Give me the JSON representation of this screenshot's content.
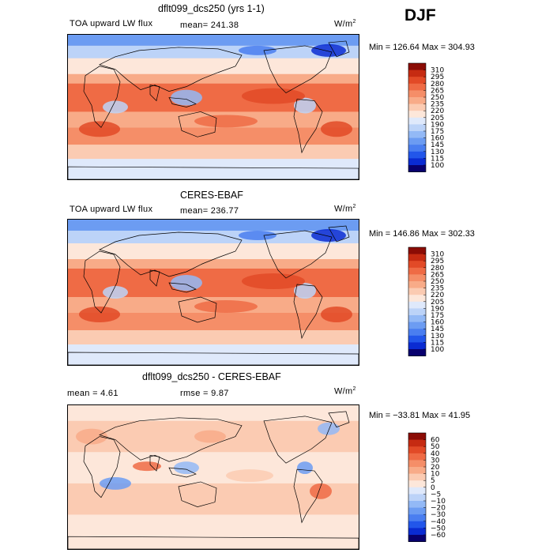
{
  "season": "DJF",
  "colors": {
    "abs_scale": [
      "#08006e",
      "#0a2bd2",
      "#2256ea",
      "#4a7ef0",
      "#6c9cf2",
      "#93b9f6",
      "#bcd3f8",
      "#dfe9fb",
      "#fde7da",
      "#fbcbb2",
      "#f8ab88",
      "#f58e68",
      "#ef6b45",
      "#e24a27",
      "#c62b12",
      "#8b0c05"
    ],
    "diff_scale": [
      "#08006e",
      "#0a2bd2",
      "#2256ea",
      "#4a7ef0",
      "#6c9cf2",
      "#93b9f6",
      "#bcd3f8",
      "#dfe9fb",
      "#fde7da",
      "#fbcbb2",
      "#f8ab88",
      "#f58e68",
      "#ef6b45",
      "#e24a27",
      "#c62b12",
      "#8b0c05"
    ]
  },
  "panels": [
    {
      "title": "dflt099_dcs250 (yrs 1-1)",
      "left_label": "TOA upward LW flux",
      "stat_label": "mean= 241.38",
      "units": "W/m",
      "units_sup": "2",
      "minmax": "Min = 126.64 Max = 304.93"
    },
    {
      "title": "CERES-EBAF",
      "left_label": "TOA upward LW flux",
      "stat_label": "mean= 236.77",
      "units": "W/m",
      "units_sup": "2",
      "minmax": "Min = 146.86 Max = 302.33"
    },
    {
      "title": "dflt099_dcs250 - CERES-EBAF",
      "left_label": "mean =   4.61",
      "stat_label": "rmse =   9.87",
      "units": "W/m",
      "units_sup": "2",
      "minmax": "Min = −33.81 Max =  41.95"
    }
  ],
  "chart_data": [
    {
      "type": "heatmap",
      "title": "dflt099_dcs250 (yrs 1-1)",
      "variable": "TOA upward LW flux",
      "units": "W/m2",
      "mean": 241.38,
      "min": 126.64,
      "max": 304.93,
      "colorbar_ticks": [
        "310",
        "295",
        "280",
        "265",
        "250",
        "235",
        "220",
        "205",
        "190",
        "175",
        "160",
        "145",
        "130",
        "115",
        "100"
      ]
    },
    {
      "type": "heatmap",
      "title": "CERES-EBAF",
      "variable": "TOA upward LW flux",
      "units": "W/m2",
      "mean": 236.77,
      "min": 146.86,
      "max": 302.33,
      "colorbar_ticks": [
        "310",
        "295",
        "280",
        "265",
        "250",
        "235",
        "220",
        "205",
        "190",
        "175",
        "160",
        "145",
        "130",
        "115",
        "100"
      ]
    },
    {
      "type": "heatmap",
      "title": "dflt099_dcs250 - CERES-EBAF",
      "units": "W/m2",
      "mean": 4.61,
      "rmse": 9.87,
      "min": -33.81,
      "max": 41.95,
      "colorbar_ticks": [
        "60",
        "50",
        "40",
        "30",
        "20",
        "10",
        "5",
        "0",
        "−5",
        "−10",
        "−20",
        "−30",
        "−40",
        "−50",
        "−60"
      ]
    }
  ]
}
